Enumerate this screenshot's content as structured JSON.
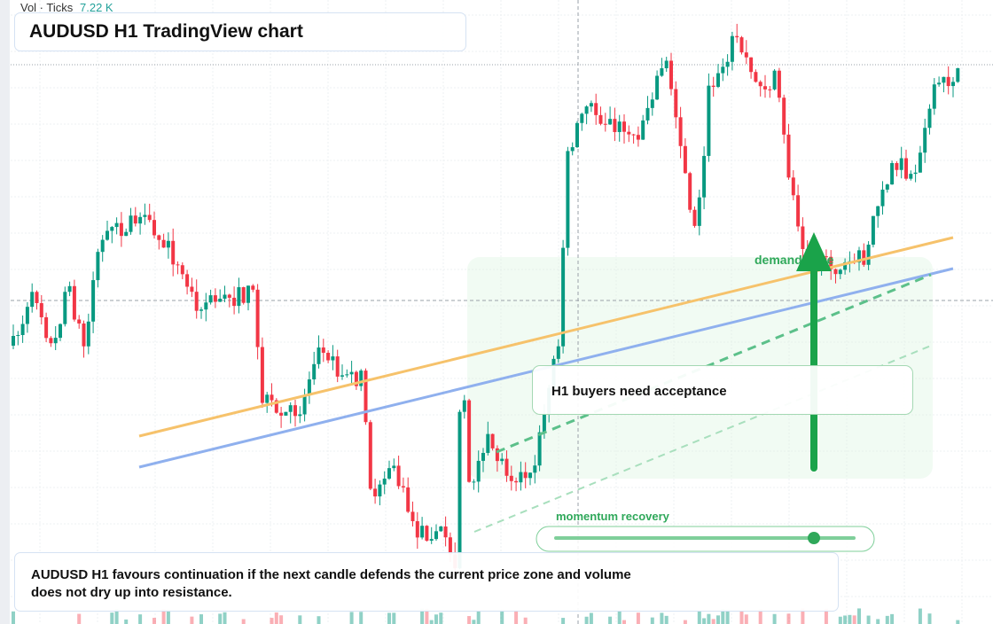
{
  "header": {
    "volume_label": "Vol · Ticks",
    "volume_value": "7.22 K",
    "title": "AUDUSD H1 TradingView chart"
  },
  "annotations": {
    "zone": "demand zone",
    "callout": "H1 buyers need acceptance",
    "momentum": "momentum recovery"
  },
  "note": "AUDUSD H1 favours continuation if the next candle defends the current price zone and volume does not dry up into resistance."
}
